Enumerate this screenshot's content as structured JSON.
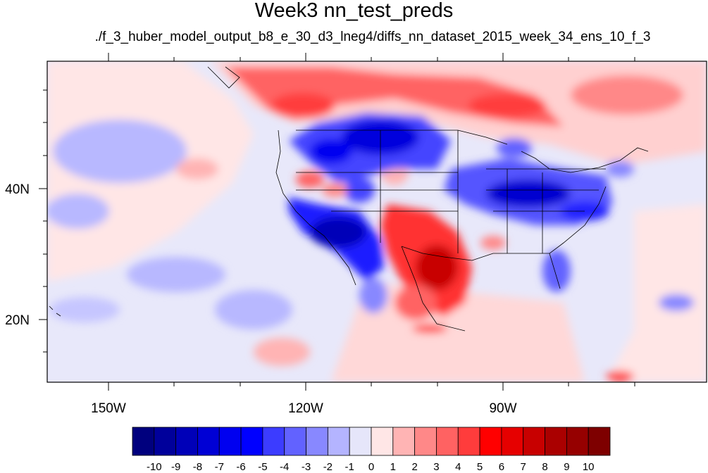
{
  "title": "Week3 nn_test_preds",
  "subtitle": "./f_3_huber_model_output_b8_e_30_d3_lneg4/diffs_nn_dataset_2015_week_34_ens_10_f_3",
  "map": {
    "lon_labels": [
      "150W",
      "120W",
      "90W"
    ],
    "lat_labels": [
      "40N",
      "20N"
    ]
  },
  "colorbar": {
    "colors": [
      "#00007e",
      "#00009b",
      "#0000b8",
      "#0000d5",
      "#0000f0",
      "#0000ff",
      "#3c3cff",
      "#6262ff",
      "#8888ff",
      "#b4b4ff",
      "#e6e6fa",
      "#ffe6e6",
      "#ffb4b4",
      "#ff8888",
      "#ff6262",
      "#ff3c3c",
      "#ff0000",
      "#e60000",
      "#c80000",
      "#aa0000",
      "#960000",
      "#7e0000"
    ],
    "labels": [
      "-10",
      "-9",
      "-8",
      "-7",
      "-6",
      "-5",
      "-4",
      "-3",
      "-2",
      "-1",
      "0",
      "1",
      "2",
      "3",
      "4",
      "5",
      "6",
      "7",
      "8",
      "9",
      "10"
    ]
  }
}
